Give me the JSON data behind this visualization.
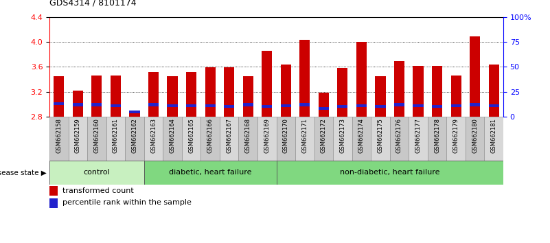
{
  "title": "GDS4314 / 8101174",
  "samples": [
    "GSM662158",
    "GSM662159",
    "GSM662160",
    "GSM662161",
    "GSM662162",
    "GSM662163",
    "GSM662164",
    "GSM662165",
    "GSM662166",
    "GSM662167",
    "GSM662168",
    "GSM662169",
    "GSM662170",
    "GSM662171",
    "GSM662172",
    "GSM662173",
    "GSM662174",
    "GSM662175",
    "GSM662176",
    "GSM662177",
    "GSM662178",
    "GSM662179",
    "GSM662180",
    "GSM662181"
  ],
  "red_values": [
    3.45,
    3.22,
    3.46,
    3.46,
    2.87,
    3.52,
    3.45,
    3.52,
    3.59,
    3.59,
    3.45,
    3.86,
    3.64,
    4.03,
    3.19,
    3.58,
    4.0,
    3.45,
    3.69,
    3.62,
    3.62,
    3.46,
    4.09,
    3.64
  ],
  "blue_percentile": [
    0.13,
    0.12,
    0.12,
    0.11,
    0.05,
    0.12,
    0.11,
    0.11,
    0.11,
    0.1,
    0.12,
    0.1,
    0.11,
    0.12,
    0.08,
    0.1,
    0.11,
    0.1,
    0.12,
    0.11,
    0.1,
    0.11,
    0.12,
    0.11
  ],
  "y_min": 2.8,
  "y_max": 4.4,
  "right_y_ticks": [
    0,
    25,
    50,
    75,
    100
  ],
  "right_y_labels": [
    "0",
    "25",
    "50",
    "75",
    "100%"
  ],
  "left_y_ticks": [
    2.8,
    3.2,
    3.6,
    4.0,
    4.4
  ],
  "groups": [
    {
      "label": "control",
      "start": 0,
      "end": 5
    },
    {
      "label": "diabetic, heart failure",
      "start": 5,
      "end": 12
    },
    {
      "label": "non-diabetic, heart failure",
      "start": 12,
      "end": 24
    }
  ],
  "group_colors": [
    "#c8f0c0",
    "#80d880",
    "#80d880"
  ],
  "bar_color": "#cc0000",
  "blue_color": "#2222cc",
  "bar_width": 0.55,
  "tick_label_bg_even": "#c8c8c8",
  "tick_label_bg_odd": "#d8d8d8"
}
